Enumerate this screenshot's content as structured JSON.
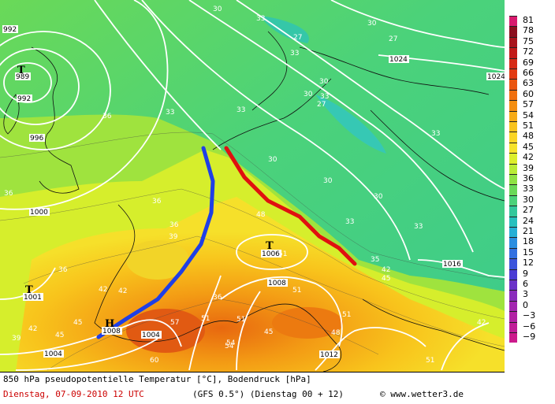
{
  "footer": {
    "title": "850 hPa pseudopotentielle Temperatur [°C], Bodendruck [hPa]",
    "date": "Dienstag, 07-09-2010  12 UTC",
    "model": "(GFS 0.5°)  (Dienstag 00 + 12)",
    "credit": "www.wetter3.de",
    "copyright": "©"
  },
  "scale": {
    "ticks": [
      "81",
      "78",
      "75",
      "72",
      "69",
      "66",
      "63",
      "60",
      "57",
      "54",
      "51",
      "48",
      "45",
      "42",
      "39",
      "36",
      "33",
      "30",
      "27",
      "24",
      "21",
      "18",
      "15",
      "12",
      "9",
      "6",
      "3",
      "0",
      "−3",
      "−6",
      "−9"
    ],
    "colors": [
      "#d81a6e",
      "#8b0f1e",
      "#a8141c",
      "#c21a18",
      "#d62a15",
      "#e23a12",
      "#ea5510",
      "#f0700e",
      "#f48e10",
      "#f7ab16",
      "#f9c31c",
      "#fbd524",
      "#f6e22a",
      "#dcee2c",
      "#b9ec36",
      "#8fe244",
      "#6ad958",
      "#4bd27a",
      "#33c89c",
      "#27c0be",
      "#26afd6",
      "#2b8ee0",
      "#3270e0",
      "#3c55dc",
      "#4a3cd4",
      "#6a32c8",
      "#8a2cbc",
      "#a326b0",
      "#b222a4",
      "#c01e98",
      "#cc1a8c"
    ]
  },
  "pressure_labels": [
    {
      "text": "992"
    },
    {
      "text": "989"
    },
    {
      "text": "992"
    },
    {
      "text": "996"
    },
    {
      "text": "1000"
    },
    {
      "text": "1001"
    },
    {
      "text": "1004"
    },
    {
      "text": "1004"
    },
    {
      "text": "1008"
    },
    {
      "text": "1006"
    },
    {
      "text": "1008"
    },
    {
      "text": "1012"
    },
    {
      "text": "1016"
    },
    {
      "text": "1024"
    },
    {
      "text": "1024"
    }
  ],
  "pressure_centers": [
    {
      "symbol": "T"
    },
    {
      "symbol": "T"
    },
    {
      "symbol": "T"
    },
    {
      "symbol": "H"
    }
  ],
  "temperature_labels": [
    {
      "text": "30"
    },
    {
      "text": "33"
    },
    {
      "text": "27"
    },
    {
      "text": "30"
    },
    {
      "text": "27"
    },
    {
      "text": "33"
    },
    {
      "text": "30"
    },
    {
      "text": "33"
    },
    {
      "text": "27"
    },
    {
      "text": "30"
    },
    {
      "text": "33"
    },
    {
      "text": "36"
    },
    {
      "text": "33"
    },
    {
      "text": "36"
    },
    {
      "text": "42"
    },
    {
      "text": "39"
    },
    {
      "text": "36"
    },
    {
      "text": "30"
    },
    {
      "text": "33"
    },
    {
      "text": "30"
    },
    {
      "text": "30"
    },
    {
      "text": "33"
    },
    {
      "text": "48"
    },
    {
      "text": "51"
    },
    {
      "text": "51"
    },
    {
      "text": "54"
    },
    {
      "text": "57"
    },
    {
      "text": "45"
    },
    {
      "text": "42"
    },
    {
      "text": "51"
    },
    {
      "text": "45"
    },
    {
      "text": "35"
    },
    {
      "text": "42"
    },
    {
      "text": "45"
    },
    {
      "text": "51"
    },
    {
      "text": "42"
    },
    {
      "text": "39"
    },
    {
      "text": "36"
    },
    {
      "text": "36"
    },
    {
      "text": "42"
    },
    {
      "text": "60"
    },
    {
      "text": "51"
    },
    {
      "text": "54"
    },
    {
      "text": "48"
    },
    {
      "text": "45"
    },
    {
      "text": "51"
    },
    {
      "text": "33"
    },
    {
      "text": "36"
    }
  ]
}
